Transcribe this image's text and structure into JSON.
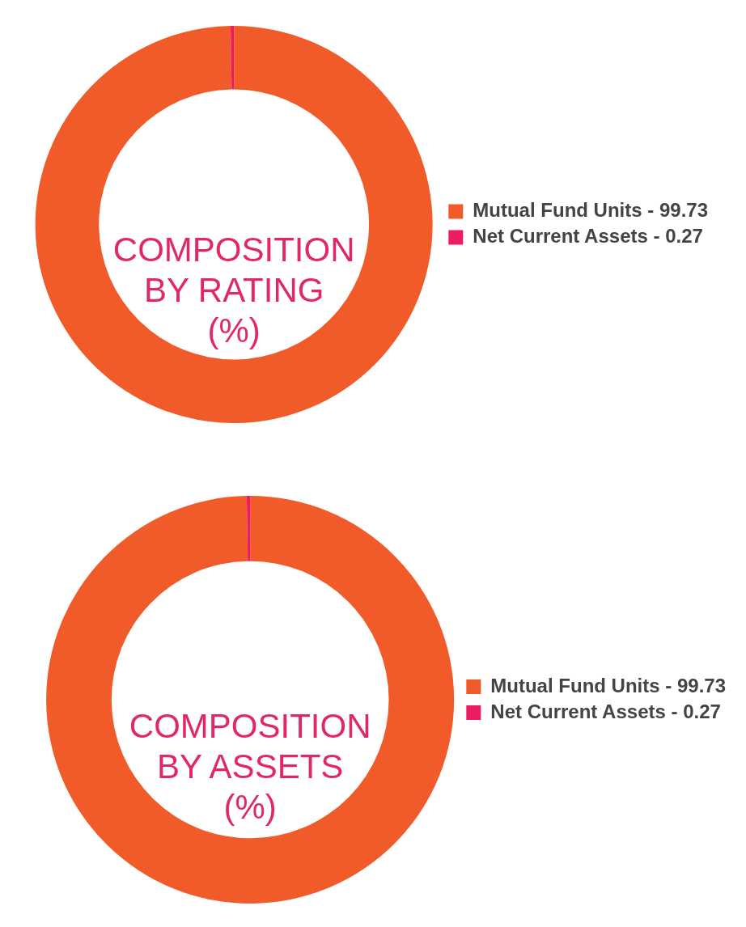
{
  "chart_data": [
    {
      "type": "donut",
      "title": "COMPOSITION\nBY RATING\n(%)",
      "categories": [
        "Mutual Fund Units - 99.73",
        "Net Current Assets - 0.27"
      ],
      "values": [
        99.73,
        0.27
      ],
      "colors": [
        "#f15a29",
        "#ec1c64"
      ],
      "legend": "right"
    },
    {
      "type": "donut",
      "title": "COMPOSITION\nBY ASSETS\n(%)",
      "categories": [
        "Mutual Fund Units - 99.73",
        "Net Current Assets - 0.27"
      ],
      "values": [
        99.73,
        0.27
      ],
      "colors": [
        "#f15a29",
        "#ec1c64"
      ],
      "legend": "right"
    }
  ]
}
